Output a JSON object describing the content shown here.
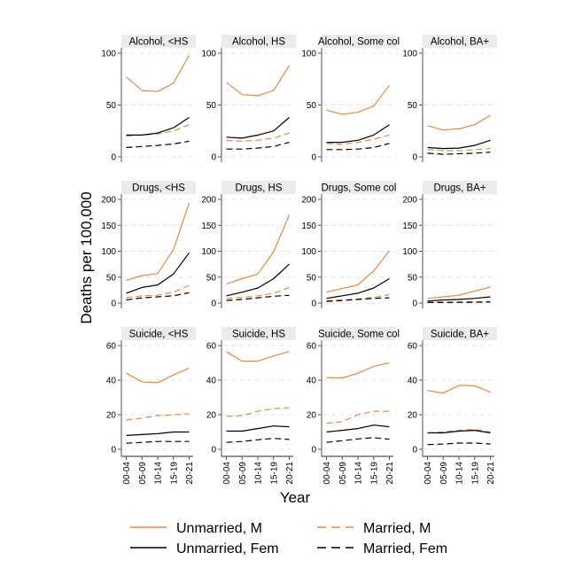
{
  "chart_data": {
    "type": "line",
    "layout": "small-multiples 3x4",
    "xlabel": "Year",
    "ylabel": "Deaths per 100,000",
    "x": [
      "00-04",
      "05-09",
      "10-14",
      "15-19",
      "20-21"
    ],
    "grid": true,
    "legend_position": "bottom",
    "series": [
      {
        "name": "Unmarried, M",
        "color": "#f0883a",
        "dash": "solid"
      },
      {
        "name": "Married, M",
        "color": "#f0883a",
        "dash": "dashed"
      },
      {
        "name": "Unmarried, Fem",
        "color": "#000000",
        "dash": "solid"
      },
      {
        "name": "Married, Fem",
        "color": "#000000",
        "dash": "dashed"
      }
    ],
    "panels": [
      {
        "title": "Alcohol, <HS",
        "ylim": [
          0,
          100
        ],
        "yticks": [
          0,
          50,
          100
        ],
        "values": [
          [
            77,
            64,
            63,
            71,
            98
          ],
          [
            20,
            21,
            22,
            25,
            31
          ],
          [
            21,
            21,
            23,
            28,
            38
          ],
          [
            9,
            10,
            11,
            12.5,
            15
          ]
        ]
      },
      {
        "title": "Alcohol, HS",
        "ylim": [
          0,
          100
        ],
        "yticks": [
          0,
          50,
          100
        ],
        "values": [
          [
            72,
            60,
            59,
            64,
            88
          ],
          [
            16,
            15,
            16,
            18,
            23
          ],
          [
            19,
            18,
            21,
            25,
            38
          ],
          [
            7.5,
            7.5,
            8.5,
            10,
            14
          ]
        ]
      },
      {
        "title": "Alcohol, Some col",
        "ylim": [
          0,
          100
        ],
        "yticks": [
          0,
          50,
          100
        ],
        "values": [
          [
            45,
            41,
            43,
            49,
            69
          ],
          [
            13,
            12,
            14,
            17,
            21
          ],
          [
            14,
            14,
            16,
            21,
            31
          ],
          [
            7,
            7,
            7.5,
            9,
            13
          ]
        ]
      },
      {
        "title": "Alcohol, BA+",
        "ylim": [
          0,
          100
        ],
        "yticks": [
          0,
          50,
          100
        ],
        "values": [
          [
            30,
            26,
            27,
            31,
            40
          ],
          [
            7,
            6,
            6,
            7,
            8
          ],
          [
            9,
            8,
            8.5,
            11,
            16
          ],
          [
            3.5,
            2.5,
            3,
            3.5,
            4.5
          ]
        ]
      },
      {
        "title": "Drugs, <HS",
        "ylim": [
          0,
          200
        ],
        "yticks": [
          0,
          50,
          100,
          150,
          200
        ],
        "values": [
          [
            44,
            53,
            57,
            103,
            193
          ],
          [
            10,
            14,
            15,
            21,
            34
          ],
          [
            19,
            30,
            35,
            56,
            97
          ],
          [
            6,
            10,
            12,
            14,
            20
          ]
        ]
      },
      {
        "title": "Drugs, HS",
        "ylim": [
          0,
          200
        ],
        "yticks": [
          0,
          50,
          100,
          150,
          200
        ],
        "values": [
          [
            37,
            47,
            56,
            99,
            170
          ],
          [
            9,
            11,
            14,
            19,
            30
          ],
          [
            14,
            21,
            29,
            47,
            75
          ],
          [
            5,
            7,
            10,
            13,
            15
          ]
        ]
      },
      {
        "title": "Drugs, Some col",
        "ylim": [
          0,
          200
        ],
        "yticks": [
          0,
          50,
          100,
          150,
          200
        ],
        "values": [
          [
            21,
            28,
            35,
            62,
            101
          ],
          [
            5,
            6,
            8,
            11,
            16
          ],
          [
            9,
            14,
            19,
            29,
            47
          ],
          [
            3,
            5,
            7,
            9,
            10
          ]
        ]
      },
      {
        "title": "Drugs, BA+",
        "ylim": [
          0,
          200
        ],
        "yticks": [
          0,
          50,
          100,
          150,
          200
        ],
        "values": [
          [
            9,
            12,
            15,
            23,
            31
          ],
          [
            2,
            2,
            2,
            2.5,
            3
          ],
          [
            4,
            6,
            7,
            9,
            12
          ],
          [
            1,
            1,
            1.5,
            1.5,
            2
          ]
        ]
      },
      {
        "title": "Suicide, <HS",
        "ylim": [
          0,
          60
        ],
        "yticks": [
          0,
          20,
          40,
          60
        ],
        "values": [
          [
            44,
            39,
            38.5,
            43,
            47
          ],
          [
            17,
            18,
            19.5,
            20,
            20.5
          ],
          [
            8,
            8.5,
            9,
            10,
            10
          ],
          [
            3.5,
            4,
            4.5,
            4.5,
            4.5
          ]
        ]
      },
      {
        "title": "Suicide, HS",
        "ylim": [
          0,
          60
        ],
        "yticks": [
          0,
          20,
          40,
          60
        ],
        "values": [
          [
            56.5,
            51,
            51,
            54,
            56.5
          ],
          [
            19,
            19.5,
            22,
            23.5,
            24
          ],
          [
            10.5,
            10.5,
            12,
            13.5,
            13
          ],
          [
            4,
            4.5,
            5.5,
            6.3,
            5.7
          ]
        ]
      },
      {
        "title": "Suicide, Some col",
        "ylim": [
          0,
          60
        ],
        "yticks": [
          0,
          20,
          40,
          60
        ],
        "values": [
          [
            41.5,
            41.3,
            44,
            48,
            50
          ],
          [
            15,
            16,
            20,
            22,
            22
          ],
          [
            10,
            11,
            12,
            14,
            13
          ],
          [
            4,
            5,
            6,
            6.7,
            5.8
          ]
        ]
      },
      {
        "title": "Suicide, BA+",
        "ylim": [
          0,
          60
        ],
        "yticks": [
          0,
          20,
          40,
          60
        ],
        "values": [
          [
            34,
            32.5,
            37,
            36.7,
            33
          ],
          [
            9.5,
            10,
            11,
            11.5,
            10
          ],
          [
            9.5,
            9.5,
            10.5,
            11,
            9.5
          ],
          [
            2.7,
            3,
            3.6,
            3.6,
            3.1
          ]
        ]
      }
    ]
  }
}
